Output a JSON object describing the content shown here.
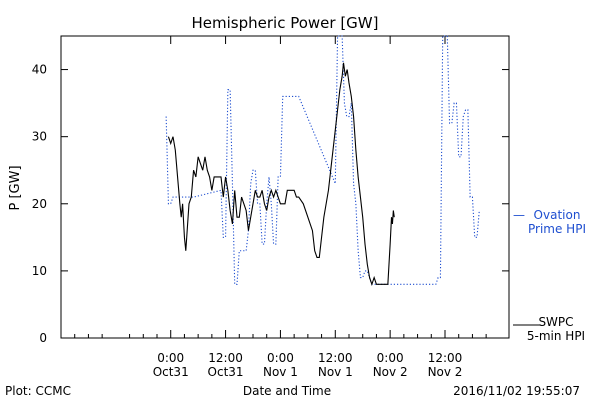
{
  "chart_data": {
    "type": "line",
    "title": "Hemispheric Power [GW]",
    "xlabel": "Date and Time",
    "ylabel": "P [GW]",
    "ylim": [
      0,
      45
    ],
    "xlim_hours": [
      -24,
      74
    ],
    "y_ticks": [
      0,
      10,
      20,
      30,
      40
    ],
    "x_ticks": [
      {
        "hour": 0,
        "line1": "0:00",
        "line2": "Oct31"
      },
      {
        "hour": 12,
        "line1": "12:00",
        "line2": "Oct31"
      },
      {
        "hour": 24,
        "line1": "0:00",
        "line2": "Nov 1"
      },
      {
        "hour": 36,
        "line1": "12:00",
        "line2": "Nov 1"
      },
      {
        "hour": 48,
        "line1": "0:00",
        "line2": "Nov 2"
      },
      {
        "hour": 60,
        "line1": "12:00",
        "line2": "Nov 2"
      }
    ],
    "grid": false,
    "series": [
      {
        "name": "SWPC 5-min HPI",
        "style": "solid",
        "color": "#000000",
        "points": [
          [
            -0.5,
            30
          ],
          [
            0,
            29
          ],
          [
            0.5,
            30
          ],
          [
            1,
            28
          ],
          [
            1.5,
            24
          ],
          [
            2,
            20
          ],
          [
            2.3,
            18
          ],
          [
            2.6,
            20
          ],
          [
            3,
            15
          ],
          [
            3.3,
            13
          ],
          [
            3.6,
            16
          ],
          [
            4,
            20
          ],
          [
            4.5,
            21
          ],
          [
            5,
            25
          ],
          [
            5.5,
            24
          ],
          [
            6,
            27
          ],
          [
            6.5,
            26
          ],
          [
            7,
            25
          ],
          [
            7.5,
            27
          ],
          [
            8,
            25
          ],
          [
            8.5,
            24
          ],
          [
            9,
            22
          ],
          [
            9.5,
            24
          ],
          [
            10,
            24
          ],
          [
            11,
            24
          ],
          [
            11.5,
            21
          ],
          [
            12,
            24
          ],
          [
            12.5,
            22
          ],
          [
            13,
            19
          ],
          [
            13.5,
            17
          ],
          [
            14,
            22
          ],
          [
            14.5,
            18
          ],
          [
            15,
            18
          ],
          [
            15.5,
            21
          ],
          [
            16,
            20
          ],
          [
            16.5,
            19
          ],
          [
            17,
            16
          ],
          [
            17.5,
            18
          ],
          [
            18,
            20
          ],
          [
            18.5,
            22
          ],
          [
            19,
            21
          ],
          [
            19.5,
            21
          ],
          [
            20,
            22
          ],
          [
            20.5,
            20
          ],
          [
            21,
            19
          ],
          [
            21.5,
            21
          ],
          [
            22,
            22
          ],
          [
            22.5,
            21
          ],
          [
            23,
            22
          ],
          [
            23.5,
            21
          ],
          [
            24,
            20
          ],
          [
            24.5,
            20
          ],
          [
            25,
            20
          ],
          [
            25.5,
            22
          ],
          [
            26,
            22
          ],
          [
            26.5,
            22
          ],
          [
            27,
            22
          ],
          [
            27.5,
            21
          ],
          [
            28,
            21
          ],
          [
            29,
            20
          ],
          [
            30,
            18
          ],
          [
            31,
            16
          ],
          [
            31.5,
            13
          ],
          [
            32,
            12
          ],
          [
            32.5,
            12
          ],
          [
            33,
            15
          ],
          [
            33.5,
            18
          ],
          [
            34,
            20
          ],
          [
            34.5,
            22
          ],
          [
            35,
            25
          ],
          [
            35.5,
            28
          ],
          [
            36,
            31
          ],
          [
            36.5,
            34
          ],
          [
            37,
            37
          ],
          [
            37.5,
            39
          ],
          [
            37.8,
            41
          ],
          [
            38.2,
            39
          ],
          [
            38.6,
            40
          ],
          [
            39,
            38
          ],
          [
            39.5,
            36
          ],
          [
            40,
            33
          ],
          [
            40.5,
            28
          ],
          [
            41,
            24
          ],
          [
            41.5,
            21
          ],
          [
            42,
            18
          ],
          [
            42.5,
            14
          ],
          [
            43,
            11
          ],
          [
            43.5,
            9
          ],
          [
            44,
            8
          ],
          [
            44.5,
            9
          ],
          [
            45,
            8
          ],
          [
            46,
            8
          ],
          [
            47,
            8
          ],
          [
            47.5,
            8
          ],
          [
            48,
            14
          ],
          [
            48.3,
            18
          ],
          [
            48.5,
            17
          ],
          [
            48.7,
            19
          ],
          [
            48.9,
            18
          ]
        ]
      },
      {
        "name": "Ovation Prime HPI",
        "style": "dotted",
        "color": "#1f4fd0",
        "points": [
          [
            -1,
            33
          ],
          [
            -0.5,
            20
          ],
          [
            0,
            20
          ],
          [
            0.5,
            21
          ],
          [
            1,
            21
          ],
          [
            5,
            21
          ],
          [
            11,
            22
          ],
          [
            11.5,
            15
          ],
          [
            12,
            15
          ],
          [
            12.5,
            37
          ],
          [
            13,
            37
          ],
          [
            13.5,
            23
          ],
          [
            14,
            8
          ],
          [
            14.5,
            8
          ],
          [
            15,
            13
          ],
          [
            15.5,
            13
          ],
          [
            16,
            13
          ],
          [
            16.5,
            13
          ],
          [
            17,
            16
          ],
          [
            17.5,
            23
          ],
          [
            18,
            25
          ],
          [
            18.5,
            25
          ],
          [
            19,
            20
          ],
          [
            19.5,
            20
          ],
          [
            20,
            14
          ],
          [
            20.5,
            14
          ],
          [
            21,
            20
          ],
          [
            21.5,
            24
          ],
          [
            22,
            20
          ],
          [
            22.5,
            14
          ],
          [
            23,
            14
          ],
          [
            23.5,
            24
          ],
          [
            24,
            24
          ],
          [
            24.5,
            36
          ],
          [
            25,
            36
          ],
          [
            28,
            36
          ],
          [
            36,
            23
          ],
          [
            36.5,
            45
          ],
          [
            37.5,
            45
          ],
          [
            38,
            35
          ],
          [
            38.5,
            33
          ],
          [
            39,
            33
          ],
          [
            39.5,
            35
          ],
          [
            40,
            23
          ],
          [
            40.5,
            20
          ],
          [
            41,
            13
          ],
          [
            41.5,
            9
          ],
          [
            42,
            9
          ],
          [
            42.5,
            10
          ],
          [
            43,
            10
          ],
          [
            43.5,
            9
          ],
          [
            44,
            8
          ],
          [
            45,
            8
          ],
          [
            58,
            8
          ],
          [
            58.5,
            9
          ],
          [
            59,
            9
          ],
          [
            59.5,
            45
          ],
          [
            60.5,
            45
          ],
          [
            61,
            32
          ],
          [
            61.5,
            32
          ],
          [
            62,
            35
          ],
          [
            62.5,
            35
          ],
          [
            63,
            27
          ],
          [
            63.5,
            27
          ],
          [
            64,
            33
          ],
          [
            64.5,
            34
          ],
          [
            65,
            34
          ],
          [
            65.5,
            21
          ],
          [
            66,
            21
          ],
          [
            66.5,
            15
          ],
          [
            67,
            15
          ],
          [
            67.5,
            19
          ]
        ]
      }
    ],
    "legend": {
      "placement": "right",
      "ovation": {
        "dash": "—",
        "line1": "Ovation",
        "line2": "Prime HPI"
      },
      "swpc": {
        "line1": "SWPC",
        "line2": "5-min HPI"
      }
    },
    "footer": {
      "left": "Plot: CCMC",
      "right": "2016/11/02 19:55:07"
    }
  }
}
